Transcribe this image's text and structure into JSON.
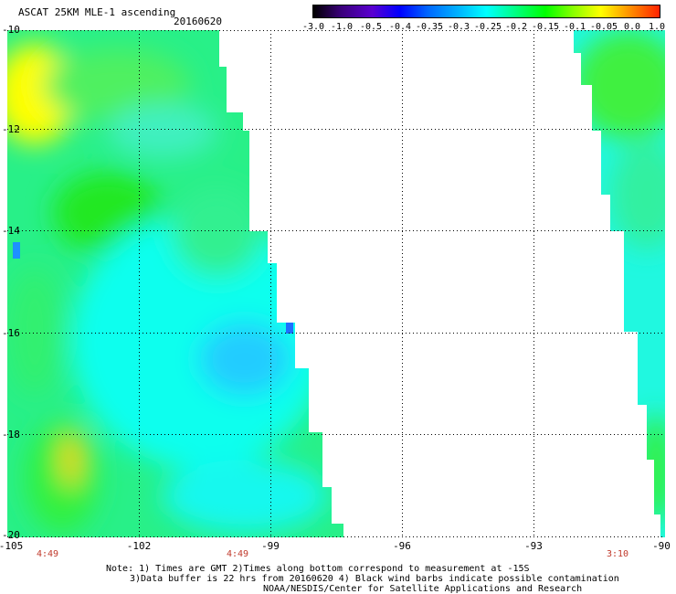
{
  "header": {
    "title": "ASCAT 25KM MLE-1 ascending",
    "date": "20160620"
  },
  "colorbar": {
    "labels": [
      "-3.0",
      "-1.0",
      "-0.5",
      "-0.4",
      "-0.35",
      "-0.3",
      "-0.25",
      "-0.2",
      "-0.15",
      "-0.1",
      "-0.05",
      "0.0",
      "1.0"
    ],
    "colors": [
      "#000000",
      "#3a007a",
      "#5a00d0",
      "#0000ff",
      "#0066ff",
      "#00b4ff",
      "#00ffff",
      "#00ff88",
      "#00ff00",
      "#88ff00",
      "#ffff00",
      "#ff8800",
      "#ff2200"
    ]
  },
  "map": {
    "lat_labels": [
      "-10",
      "-12",
      "-14",
      "-16",
      "-18",
      "-20"
    ],
    "lon_labels": [
      "-105",
      "-102",
      "-99",
      "-96",
      "-93",
      "-90"
    ],
    "pass_times": [
      "4:49",
      "4:49",
      "3:10"
    ]
  },
  "notes": [
    "Note: 1) Times are GMT 2)Times along bottom correspond to measurement at -15S",
    "3)Data buffer is 22 hrs from 20160620 4) Black wind barbs indicate possible contamination",
    "NOAA/NESDIS/Center for Satellite Applications and Research"
  ]
}
